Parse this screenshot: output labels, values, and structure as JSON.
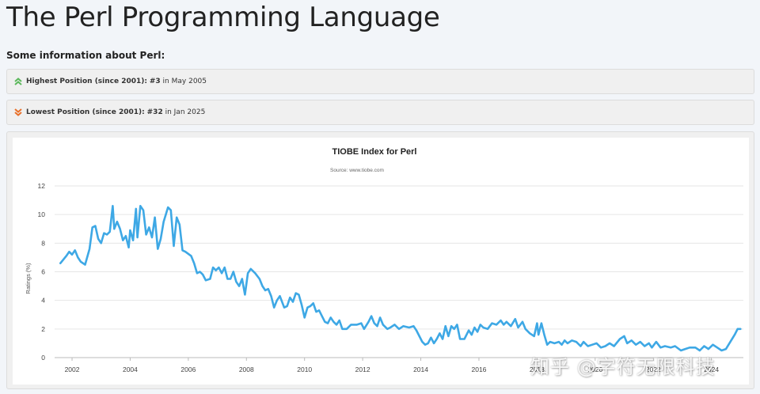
{
  "page": {
    "title": "The Perl Programming Language",
    "subheading": "Some information about Perl:"
  },
  "highest": {
    "label": "Highest Position (since 2001):",
    "rank": "#3",
    "connector": " in ",
    "date": "May 2005",
    "icon": "double-chevron-up-icon",
    "icon_color": "#5cb85c"
  },
  "lowest": {
    "label": "Lowest Position (since 2001):",
    "rank": "#32",
    "connector": " in ",
    "date": "Jan 2025",
    "icon": "double-chevron-down-icon",
    "icon_color": "#e8702a"
  },
  "watermark": "知乎 @字符无限科技",
  "chart_data": {
    "type": "line",
    "title": "TIOBE Index for Perl",
    "subtitle": "Source: www.tiobe.com",
    "xlabel": "",
    "ylabel": "Ratings (%)",
    "xlim": [
      2001.4,
      2025.1
    ],
    "ylim": [
      0,
      12
    ],
    "x_ticks": [
      "2002",
      "2004",
      "2006",
      "2008",
      "2010",
      "2012",
      "2014",
      "2016",
      "2018",
      "2020",
      "2022",
      "2024"
    ],
    "y_ticks": [
      "0",
      "2",
      "4",
      "6",
      "8",
      "10",
      "12"
    ],
    "grid": true,
    "legend": "none",
    "line_color": "#3ea8e5",
    "series": [
      {
        "name": "Perl",
        "points": [
          [
            2001.6,
            6.6
          ],
          [
            2001.8,
            7.1
          ],
          [
            2001.9,
            7.4
          ],
          [
            2002.0,
            7.2
          ],
          [
            2002.1,
            7.5
          ],
          [
            2002.2,
            7.0
          ],
          [
            2002.3,
            6.7
          ],
          [
            2002.45,
            6.5
          ],
          [
            2002.6,
            7.6
          ],
          [
            2002.7,
            9.1
          ],
          [
            2002.8,
            9.2
          ],
          [
            2002.9,
            8.3
          ],
          [
            2003.0,
            8.0
          ],
          [
            2003.1,
            8.7
          ],
          [
            2003.2,
            8.6
          ],
          [
            2003.3,
            8.8
          ],
          [
            2003.4,
            10.6
          ],
          [
            2003.45,
            9.0
          ],
          [
            2003.55,
            9.5
          ],
          [
            2003.65,
            9.0
          ],
          [
            2003.75,
            8.2
          ],
          [
            2003.85,
            8.5
          ],
          [
            2003.95,
            7.7
          ],
          [
            2004.0,
            8.9
          ],
          [
            2004.1,
            8.2
          ],
          [
            2004.2,
            10.4
          ],
          [
            2004.25,
            8.4
          ],
          [
            2004.35,
            10.6
          ],
          [
            2004.45,
            10.3
          ],
          [
            2004.55,
            8.6
          ],
          [
            2004.65,
            9.1
          ],
          [
            2004.75,
            8.4
          ],
          [
            2004.85,
            9.8
          ],
          [
            2004.95,
            7.6
          ],
          [
            2005.05,
            8.3
          ],
          [
            2005.15,
            9.5
          ],
          [
            2005.3,
            10.5
          ],
          [
            2005.4,
            10.3
          ],
          [
            2005.5,
            7.8
          ],
          [
            2005.6,
            9.8
          ],
          [
            2005.7,
            9.3
          ],
          [
            2005.8,
            7.5
          ],
          [
            2005.9,
            7.4
          ],
          [
            2006.1,
            7.1
          ],
          [
            2006.2,
            6.6
          ],
          [
            2006.3,
            5.9
          ],
          [
            2006.4,
            6.0
          ],
          [
            2006.5,
            5.8
          ],
          [
            2006.6,
            5.4
          ],
          [
            2006.75,
            5.5
          ],
          [
            2006.85,
            6.3
          ],
          [
            2006.95,
            6.1
          ],
          [
            2007.05,
            6.3
          ],
          [
            2007.15,
            5.9
          ],
          [
            2007.25,
            6.3
          ],
          [
            2007.35,
            5.5
          ],
          [
            2007.45,
            5.5
          ],
          [
            2007.55,
            6.0
          ],
          [
            2007.65,
            5.3
          ],
          [
            2007.75,
            5.0
          ],
          [
            2007.85,
            5.5
          ],
          [
            2007.95,
            4.4
          ],
          [
            2008.05,
            5.9
          ],
          [
            2008.15,
            6.2
          ],
          [
            2008.3,
            5.9
          ],
          [
            2008.45,
            5.5
          ],
          [
            2008.55,
            5.0
          ],
          [
            2008.65,
            4.7
          ],
          [
            2008.75,
            4.8
          ],
          [
            2008.85,
            4.3
          ],
          [
            2008.95,
            3.5
          ],
          [
            2009.05,
            4.0
          ],
          [
            2009.15,
            4.3
          ],
          [
            2009.3,
            3.5
          ],
          [
            2009.4,
            3.6
          ],
          [
            2009.5,
            4.2
          ],
          [
            2009.6,
            3.9
          ],
          [
            2009.7,
            4.5
          ],
          [
            2009.8,
            4.4
          ],
          [
            2009.9,
            3.7
          ],
          [
            2010.0,
            2.8
          ],
          [
            2010.1,
            3.5
          ],
          [
            2010.2,
            3.6
          ],
          [
            2010.3,
            3.8
          ],
          [
            2010.4,
            3.2
          ],
          [
            2010.5,
            3.3
          ],
          [
            2010.6,
            2.9
          ],
          [
            2010.7,
            2.5
          ],
          [
            2010.8,
            2.4
          ],
          [
            2010.9,
            2.8
          ],
          [
            2011.0,
            2.5
          ],
          [
            2011.1,
            2.3
          ],
          [
            2011.2,
            2.6
          ],
          [
            2011.3,
            2.0
          ],
          [
            2011.45,
            2.0
          ],
          [
            2011.6,
            2.3
          ],
          [
            2011.8,
            2.3
          ],
          [
            2011.95,
            2.4
          ],
          [
            2012.05,
            2.0
          ],
          [
            2012.2,
            2.5
          ],
          [
            2012.3,
            2.9
          ],
          [
            2012.4,
            2.4
          ],
          [
            2012.5,
            2.2
          ],
          [
            2012.6,
            2.8
          ],
          [
            2012.7,
            2.3
          ],
          [
            2012.85,
            2.0
          ],
          [
            2012.95,
            2.1
          ],
          [
            2013.1,
            2.3
          ],
          [
            2013.25,
            2.0
          ],
          [
            2013.4,
            2.2
          ],
          [
            2013.6,
            2.1
          ],
          [
            2013.75,
            2.2
          ],
          [
            2013.85,
            1.9
          ],
          [
            2013.95,
            1.5
          ],
          [
            2014.05,
            1.1
          ],
          [
            2014.15,
            0.9
          ],
          [
            2014.25,
            1.0
          ],
          [
            2014.35,
            1.4
          ],
          [
            2014.45,
            1.0
          ],
          [
            2014.55,
            1.3
          ],
          [
            2014.65,
            1.7
          ],
          [
            2014.75,
            1.3
          ],
          [
            2014.85,
            2.2
          ],
          [
            2014.95,
            1.5
          ],
          [
            2015.05,
            2.2
          ],
          [
            2015.15,
            2.0
          ],
          [
            2015.25,
            2.3
          ],
          [
            2015.35,
            1.3
          ],
          [
            2015.5,
            1.3
          ],
          [
            2015.65,
            1.9
          ],
          [
            2015.75,
            1.6
          ],
          [
            2015.85,
            2.1
          ],
          [
            2015.95,
            1.8
          ],
          [
            2016.05,
            2.3
          ],
          [
            2016.15,
            2.1
          ],
          [
            2016.3,
            2.0
          ],
          [
            2016.45,
            2.4
          ],
          [
            2016.6,
            2.3
          ],
          [
            2016.75,
            2.6
          ],
          [
            2016.85,
            2.3
          ],
          [
            2016.95,
            2.5
          ],
          [
            2017.1,
            2.2
          ],
          [
            2017.25,
            2.7
          ],
          [
            2017.35,
            2.1
          ],
          [
            2017.5,
            2.5
          ],
          [
            2017.6,
            2.0
          ],
          [
            2017.75,
            1.7
          ],
          [
            2017.9,
            1.5
          ],
          [
            2018.0,
            2.4
          ],
          [
            2018.05,
            1.6
          ],
          [
            2018.15,
            2.4
          ],
          [
            2018.25,
            1.6
          ],
          [
            2018.35,
            0.9
          ],
          [
            2018.45,
            1.1
          ],
          [
            2018.6,
            1.0
          ],
          [
            2018.75,
            1.1
          ],
          [
            2018.85,
            0.9
          ],
          [
            2018.95,
            1.2
          ],
          [
            2019.05,
            1.0
          ],
          [
            2019.2,
            1.2
          ],
          [
            2019.35,
            1.1
          ],
          [
            2019.5,
            0.8
          ],
          [
            2019.6,
            1.1
          ],
          [
            2019.75,
            0.8
          ],
          [
            2019.9,
            0.9
          ],
          [
            2020.05,
            1.0
          ],
          [
            2020.2,
            0.7
          ],
          [
            2020.35,
            0.8
          ],
          [
            2020.5,
            1.0
          ],
          [
            2020.65,
            0.8
          ],
          [
            2020.85,
            1.3
          ],
          [
            2021.0,
            1.5
          ],
          [
            2021.1,
            1.0
          ],
          [
            2021.25,
            1.2
          ],
          [
            2021.4,
            0.9
          ],
          [
            2021.55,
            1.1
          ],
          [
            2021.7,
            0.8
          ],
          [
            2021.85,
            1.0
          ],
          [
            2021.95,
            0.7
          ],
          [
            2022.1,
            1.1
          ],
          [
            2022.25,
            0.7
          ],
          [
            2022.4,
            0.8
          ],
          [
            2022.6,
            0.7
          ],
          [
            2022.75,
            0.8
          ],
          [
            2022.95,
            0.5
          ],
          [
            2023.1,
            0.6
          ],
          [
            2023.25,
            0.7
          ],
          [
            2023.45,
            0.7
          ],
          [
            2023.6,
            0.5
          ],
          [
            2023.75,
            0.8
          ],
          [
            2023.9,
            0.6
          ],
          [
            2024.05,
            0.9
          ],
          [
            2024.2,
            0.7
          ],
          [
            2024.35,
            0.5
          ],
          [
            2024.5,
            0.6
          ],
          [
            2024.65,
            1.1
          ],
          [
            2024.8,
            1.6
          ],
          [
            2024.9,
            2.0
          ],
          [
            2025.0,
            2.0
          ]
        ]
      }
    ]
  }
}
